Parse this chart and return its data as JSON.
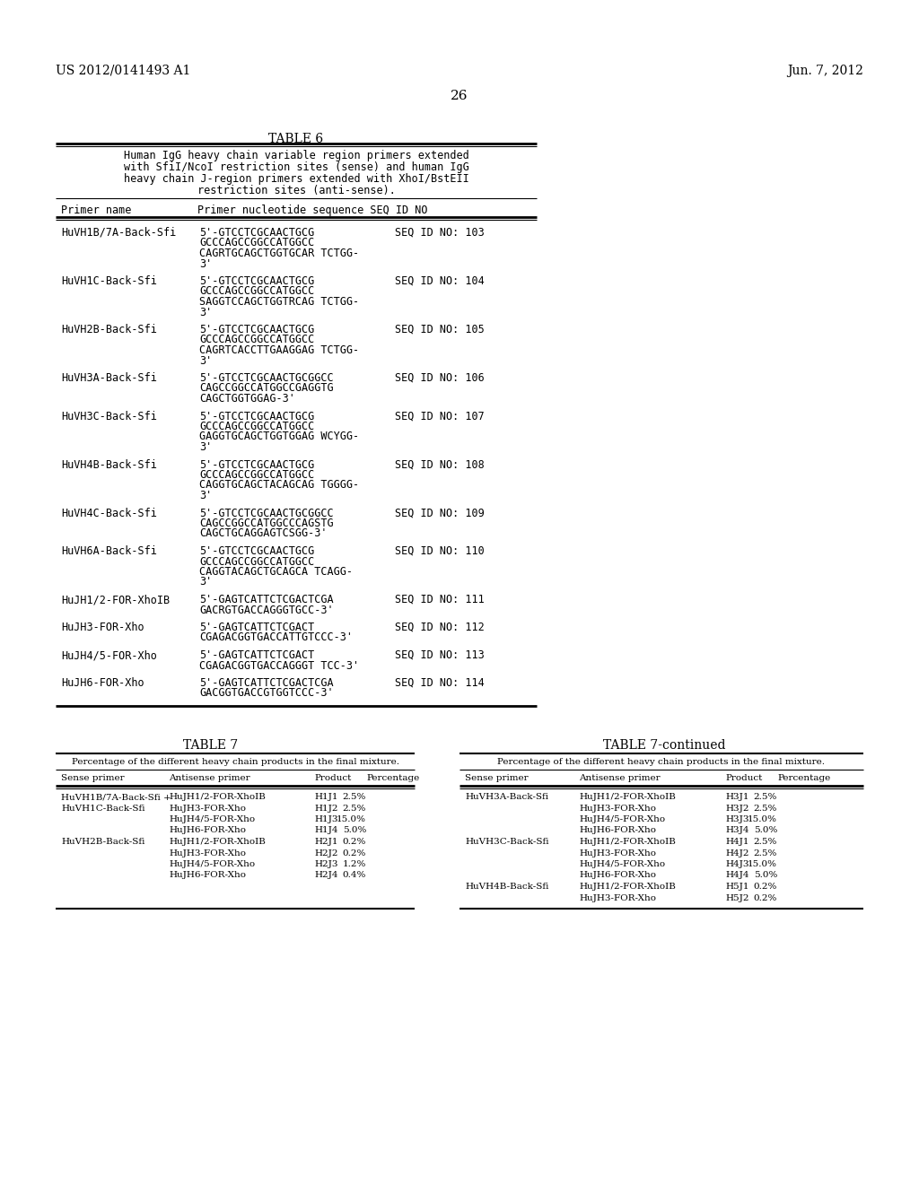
{
  "header_left": "US 2012/0141493 A1",
  "header_right": "Jun. 7, 2012",
  "page_number": "26",
  "bg": "#ffffff",
  "fg": "#000000",
  "t6_title": "TABLE 6",
  "t6_caption_lines": [
    "Human IgG heavy chain variable region primers extended",
    "with SfiI/NcoI restriction sites (sense) and human IgG",
    "heavy chain J-region primers extended with XhoI/BstEII",
    "restriction sites (anti-sense)."
  ],
  "t6_hdr1": "Primer name",
  "t6_hdr2": "Primer nucleotide sequence SEQ ID NO",
  "t6_rows": [
    {
      "name": "HuVH1B/7A-Back-Sfi",
      "seq": [
        "5'-GTCCTCGCAACTGCG",
        "GCCCAGCCGGCCATGGCC",
        "CAGRTGCAGCTGGTGCAR TCTGG-",
        "3'"
      ],
      "id": "SEQ ID NO: 103"
    },
    {
      "name": "HuVH1C-Back-Sfi",
      "seq": [
        "5'-GTCCTCGCAACTGCG",
        "GCCCAGCCGGCCATGGCC",
        "SAGGTCCAGCTGGTRCAG TCTGG-",
        "3'"
      ],
      "id": "SEQ ID NO: 104"
    },
    {
      "name": "HuVH2B-Back-Sfi",
      "seq": [
        "5'-GTCCTCGCAACTGCG",
        "GCCCAGCCGGCCATGGCC",
        "CAGRTCACCTTGAAGGAG TCTGG-",
        "3'"
      ],
      "id": "SEQ ID NO: 105"
    },
    {
      "name": "HuVH3A-Back-Sfi",
      "seq": [
        "5'-GTCCTCGCAACTGCGGCC",
        "CAGCCGGCCATGGCCGAGGTG",
        "CAGCTGGTGGAG-3'"
      ],
      "id": "SEQ ID NO: 106"
    },
    {
      "name": "HuVH3C-Back-Sfi",
      "seq": [
        "5'-GTCCTCGCAACTGCG",
        "GCCCAGCCGGCCATGGCC",
        "GAGGTGCAGCTGGTGGAG WCYGG-",
        "3'"
      ],
      "id": "SEQ ID NO: 107"
    },
    {
      "name": "HuVH4B-Back-Sfi",
      "seq": [
        "5'-GTCCTCGCAACTGCG",
        "GCCCAGCCGGCCATGGCC",
        "CAGGTGCAGCTACAGCAG TGGGG-",
        "3'"
      ],
      "id": "SEQ ID NO: 108"
    },
    {
      "name": "HuVH4C-Back-Sfi",
      "seq": [
        "5'-GTCCTCGCAACTGCGGCC",
        "CAGCCGGCCATGGCCCAGSTG",
        "CAGCTGCAGGAGTCSGG-3'"
      ],
      "id": "SEQ ID NO: 109"
    },
    {
      "name": "HuVH6A-Back-Sfi",
      "seq": [
        "5'-GTCCTCGCAACTGCG",
        "GCCCAGCCGGCCATGGCC",
        "CAGGTACAGCTGCAGCA TCAGG-",
        "3'"
      ],
      "id": "SEQ ID NO: 110"
    },
    {
      "name": "HuJH1/2-FOR-XhoIB",
      "seq": [
        "5'-GAGTCATTCTCGACTCGA",
        "GACRGTGACCAGGGTGCC-3'"
      ],
      "id": "SEQ ID NO: 111"
    },
    {
      "name": "HuJH3-FOR-Xho",
      "seq": [
        "5'-GAGTCATTCTCGACT",
        "CGAGACGGTGACCATTGTCCC-3'"
      ],
      "id": "SEQ ID NO: 112"
    },
    {
      "name": "HuJH4/5-FOR-Xho",
      "seq": [
        "5'-GAGTCATTCTCGACT",
        "CGAGACGGTGACCAGGGT TCC-3'"
      ],
      "id": "SEQ ID NO: 113"
    },
    {
      "name": "HuJH6-FOR-Xho",
      "seq": [
        "5'-GAGTCATTCTCGACTCGA",
        "GACGGTGACCGTGGTCCC-3'"
      ],
      "id": "SEQ ID NO: 114"
    }
  ],
  "t7_title": "TABLE 7",
  "t7_cont_title": "TABLE 7-continued",
  "t7_caption": "Percentage of the different heavy chain products in the final mixture.",
  "t7_hdrs": [
    "Sense primer",
    "Antisense primer",
    "Product",
    "Percentage"
  ],
  "t7_left": [
    [
      "HuVH1B/7A-Back-Sfi +",
      "HuJH1/2-FOR-XhoIB",
      "H1J1",
      "2.5%"
    ],
    [
      "HuVH1C-Back-Sfi",
      "HuJH3-FOR-Xho",
      "H1J2",
      "2.5%"
    ],
    [
      "",
      "HuJH4/5-FOR-Xho",
      "H1J3",
      "15.0%"
    ],
    [
      "",
      "HuJH6-FOR-Xho",
      "H1J4",
      "5.0%"
    ],
    [
      "HuVH2B-Back-Sfi",
      "HuJH1/2-FOR-XhoIB",
      "H2J1",
      "0.2%"
    ],
    [
      "",
      "HuJH3-FOR-Xho",
      "H2J2",
      "0.2%"
    ],
    [
      "",
      "HuJH4/5-FOR-Xho",
      "H2J3",
      "1.2%"
    ],
    [
      "",
      "HuJH6-FOR-Xho",
      "H2J4",
      "0.4%"
    ]
  ],
  "t7_right": [
    [
      "HuVH3A-Back-Sfi",
      "HuJH1/2-FOR-XhoIB",
      "H3J1",
      "2.5%"
    ],
    [
      "",
      "HuJH3-FOR-Xho",
      "H3J2",
      "2.5%"
    ],
    [
      "",
      "HuJH4/5-FOR-Xho",
      "H3J3",
      "15.0%"
    ],
    [
      "",
      "HuJH6-FOR-Xho",
      "H3J4",
      "5.0%"
    ],
    [
      "HuVH3C-Back-Sfi",
      "HuJH1/2-FOR-XhoIB",
      "H4J1",
      "2.5%"
    ],
    [
      "",
      "HuJH3-FOR-Xho",
      "H4J2",
      "2.5%"
    ],
    [
      "",
      "HuJH4/5-FOR-Xho",
      "H4J3",
      "15.0%"
    ],
    [
      "",
      "HuJH6-FOR-Xho",
      "H4J4",
      "5.0%"
    ],
    [
      "HuVH4B-Back-Sfi",
      "HuJH1/2-FOR-XhoIB",
      "H5J1",
      "0.2%"
    ],
    [
      "",
      "HuJH3-FOR-Xho",
      "H5J2",
      "0.2%"
    ]
  ]
}
